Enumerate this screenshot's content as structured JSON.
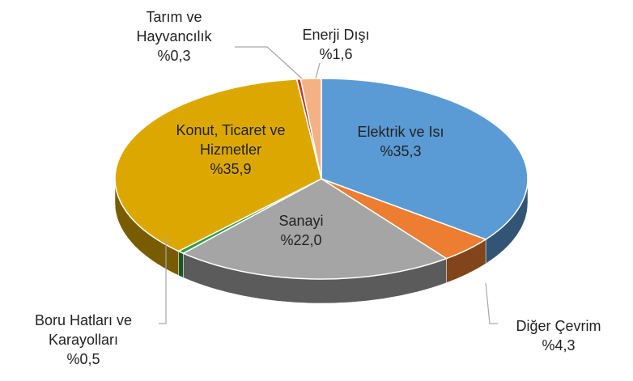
{
  "chart_data": {
    "type": "pie3d",
    "categories": [
      "Elektrik ve Isı",
      "Diğer Çevrim",
      "Sanayi",
      "Boru Hatları ve Karayolları",
      "Konut, Ticaret ve Hizmetler",
      "Tarım ve Hayvancılık",
      "Enerji Dışı"
    ],
    "values": [
      35.3,
      4.3,
      22.0,
      0.5,
      35.9,
      0.3,
      1.6
    ],
    "value_labels": [
      "%35,3",
      "%4,3",
      "%22,0",
      "%0,5",
      "%35,9",
      "%0,3",
      "%1,6"
    ],
    "colors": [
      "#5b9bd5",
      "#ed7d31",
      "#a5a5a5",
      "#2e9e44",
      "#dca800",
      "#c0392b",
      "#f4b183"
    ]
  }
}
